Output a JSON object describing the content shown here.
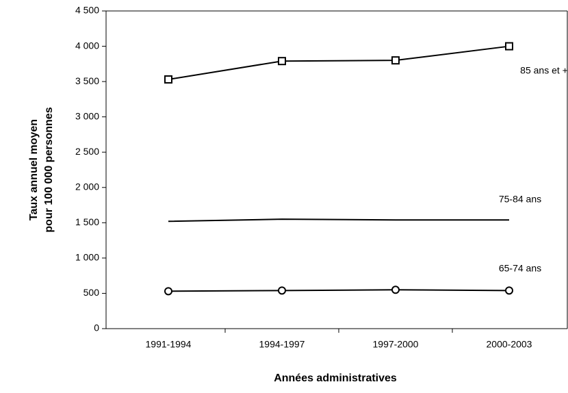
{
  "chart_data": {
    "type": "line",
    "ylabel": [
      "Taux annuel moyen",
      "pour 100 000 personnes"
    ],
    "xlabel": "Années administratives",
    "categories": [
      "1991-1994",
      "1994-1997",
      "1997-2000",
      "2000-2003"
    ],
    "series": [
      {
        "name": "85 ans et +",
        "color": "#000000",
        "marker": "square",
        "values": [
          3530,
          3790,
          3800,
          4000
        ]
      },
      {
        "name": "75-84 ans",
        "color": "#000000",
        "marker": "none",
        "values": [
          1520,
          1550,
          1540,
          1540
        ]
      },
      {
        "name": "65-74 ans",
        "color": "#000000",
        "marker": "circle",
        "values": [
          530,
          540,
          550,
          540
        ]
      }
    ],
    "ylim": [
      0,
      4500
    ],
    "yticks": [
      0,
      500,
      {
        "value": 1000,
        "label": "1 000"
      },
      {
        "value": 1500,
        "label": "1 500"
      },
      {
        "value": 2000,
        "label": "2 000"
      },
      {
        "value": 2500,
        "label": "2 500"
      },
      {
        "value": 3000,
        "label": "3 000"
      },
      {
        "value": 3500,
        "label": "3 500"
      },
      {
        "value": 4000,
        "label": "4 000"
      },
      {
        "value": 4500,
        "label": "4 500"
      }
    ],
    "grid": false
  }
}
